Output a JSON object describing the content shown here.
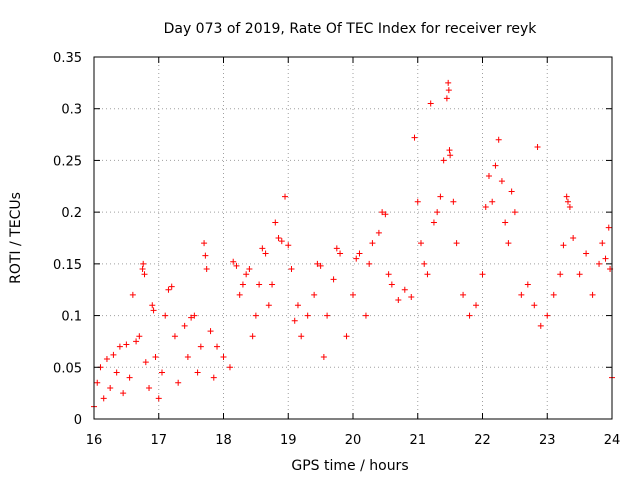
{
  "chart_data": {
    "type": "scatter",
    "title": "Day 073 of 2019, Rate Of TEC Index for receiver reyk",
    "xlabel": "GPS time / hours",
    "ylabel": "ROTI / TECUs",
    "xlim": [
      16,
      24
    ],
    "ylim": [
      0,
      0.35
    ],
    "x_ticks": [
      16,
      17,
      18,
      19,
      20,
      21,
      22,
      23,
      24
    ],
    "x_tick_labels": [
      "16",
      "17",
      "18",
      "19",
      "20",
      "21",
      "22",
      "23",
      "24"
    ],
    "y_ticks": [
      0,
      0.05,
      0.1,
      0.15,
      0.2,
      0.25,
      0.3,
      0.35
    ],
    "y_tick_labels": [
      "0",
      "0.05",
      "0.1",
      "0.15",
      "0.2",
      "0.25",
      "0.3",
      "0.35"
    ],
    "grid": true,
    "marker": "+",
    "marker_color": "#ff0000",
    "series": [
      {
        "name": "ROTI",
        "points": [
          [
            16.0,
            0.012
          ],
          [
            16.05,
            0.035
          ],
          [
            16.1,
            0.05
          ],
          [
            16.15,
            0.02
          ],
          [
            16.2,
            0.058
          ],
          [
            16.25,
            0.03
          ],
          [
            16.3,
            0.062
          ],
          [
            16.35,
            0.045
          ],
          [
            16.4,
            0.07
          ],
          [
            16.45,
            0.025
          ],
          [
            16.5,
            0.072
          ],
          [
            16.55,
            0.04
          ],
          [
            16.6,
            0.12
          ],
          [
            16.65,
            0.075
          ],
          [
            16.7,
            0.08
          ],
          [
            16.75,
            0.145
          ],
          [
            16.76,
            0.15
          ],
          [
            16.78,
            0.14
          ],
          [
            16.8,
            0.055
          ],
          [
            16.85,
            0.03
          ],
          [
            16.9,
            0.11
          ],
          [
            16.92,
            0.105
          ],
          [
            16.95,
            0.06
          ],
          [
            17.0,
            0.02
          ],
          [
            17.05,
            0.045
          ],
          [
            17.1,
            0.1
          ],
          [
            17.15,
            0.125
          ],
          [
            17.2,
            0.128
          ],
          [
            17.25,
            0.08
          ],
          [
            17.3,
            0.035
          ],
          [
            17.4,
            0.09
          ],
          [
            17.45,
            0.06
          ],
          [
            17.5,
            0.098
          ],
          [
            17.55,
            0.1
          ],
          [
            17.6,
            0.045
          ],
          [
            17.65,
            0.07
          ],
          [
            17.7,
            0.17
          ],
          [
            17.72,
            0.158
          ],
          [
            17.74,
            0.145
          ],
          [
            17.8,
            0.085
          ],
          [
            17.85,
            0.04
          ],
          [
            17.9,
            0.07
          ],
          [
            18.0,
            0.06
          ],
          [
            18.1,
            0.05
          ],
          [
            18.15,
            0.152
          ],
          [
            18.2,
            0.148
          ],
          [
            18.25,
            0.12
          ],
          [
            18.3,
            0.13
          ],
          [
            18.35,
            0.14
          ],
          [
            18.4,
            0.145
          ],
          [
            18.45,
            0.08
          ],
          [
            18.5,
            0.1
          ],
          [
            18.55,
            0.13
          ],
          [
            18.6,
            0.165
          ],
          [
            18.65,
            0.16
          ],
          [
            18.7,
            0.11
          ],
          [
            18.75,
            0.13
          ],
          [
            18.8,
            0.19
          ],
          [
            18.85,
            0.175
          ],
          [
            18.9,
            0.172
          ],
          [
            18.95,
            0.215
          ],
          [
            19.0,
            0.168
          ],
          [
            19.05,
            0.145
          ],
          [
            19.1,
            0.095
          ],
          [
            19.15,
            0.11
          ],
          [
            19.2,
            0.08
          ],
          [
            19.3,
            0.1
          ],
          [
            19.4,
            0.12
          ],
          [
            19.45,
            0.15
          ],
          [
            19.5,
            0.148
          ],
          [
            19.55,
            0.06
          ],
          [
            19.6,
            0.1
          ],
          [
            19.7,
            0.135
          ],
          [
            19.75,
            0.165
          ],
          [
            19.8,
            0.16
          ],
          [
            19.9,
            0.08
          ],
          [
            20.0,
            0.12
          ],
          [
            20.05,
            0.155
          ],
          [
            20.1,
            0.16
          ],
          [
            20.2,
            0.1
          ],
          [
            20.25,
            0.15
          ],
          [
            20.3,
            0.17
          ],
          [
            20.4,
            0.18
          ],
          [
            20.45,
            0.2
          ],
          [
            20.5,
            0.198
          ],
          [
            20.55,
            0.14
          ],
          [
            20.6,
            0.13
          ],
          [
            20.7,
            0.115
          ],
          [
            20.8,
            0.125
          ],
          [
            20.9,
            0.118
          ],
          [
            20.95,
            0.272
          ],
          [
            21.0,
            0.21
          ],
          [
            21.05,
            0.17
          ],
          [
            21.1,
            0.15
          ],
          [
            21.15,
            0.14
          ],
          [
            21.2,
            0.305
          ],
          [
            21.25,
            0.19
          ],
          [
            21.3,
            0.2
          ],
          [
            21.35,
            0.215
          ],
          [
            21.4,
            0.25
          ],
          [
            21.45,
            0.31
          ],
          [
            21.47,
            0.325
          ],
          [
            21.48,
            0.318
          ],
          [
            21.49,
            0.26
          ],
          [
            21.5,
            0.255
          ],
          [
            21.55,
            0.21
          ],
          [
            21.6,
            0.17
          ],
          [
            21.7,
            0.12
          ],
          [
            21.8,
            0.1
          ],
          [
            21.9,
            0.11
          ],
          [
            22.0,
            0.14
          ],
          [
            22.05,
            0.205
          ],
          [
            22.1,
            0.235
          ],
          [
            22.15,
            0.21
          ],
          [
            22.2,
            0.245
          ],
          [
            22.25,
            0.27
          ],
          [
            22.3,
            0.23
          ],
          [
            22.35,
            0.19
          ],
          [
            22.4,
            0.17
          ],
          [
            22.45,
            0.22
          ],
          [
            22.5,
            0.2
          ],
          [
            22.6,
            0.12
          ],
          [
            22.7,
            0.13
          ],
          [
            22.8,
            0.11
          ],
          [
            22.85,
            0.263
          ],
          [
            22.9,
            0.09
          ],
          [
            23.0,
            0.1
          ],
          [
            23.1,
            0.12
          ],
          [
            23.2,
            0.14
          ],
          [
            23.25,
            0.168
          ],
          [
            23.3,
            0.215
          ],
          [
            23.32,
            0.21
          ],
          [
            23.35,
            0.205
          ],
          [
            23.4,
            0.175
          ],
          [
            23.5,
            0.14
          ],
          [
            23.6,
            0.16
          ],
          [
            23.7,
            0.12
          ],
          [
            23.8,
            0.15
          ],
          [
            23.85,
            0.17
          ],
          [
            23.9,
            0.155
          ],
          [
            23.95,
            0.185
          ],
          [
            23.97,
            0.145
          ],
          [
            24.0,
            0.04
          ]
        ]
      }
    ]
  }
}
